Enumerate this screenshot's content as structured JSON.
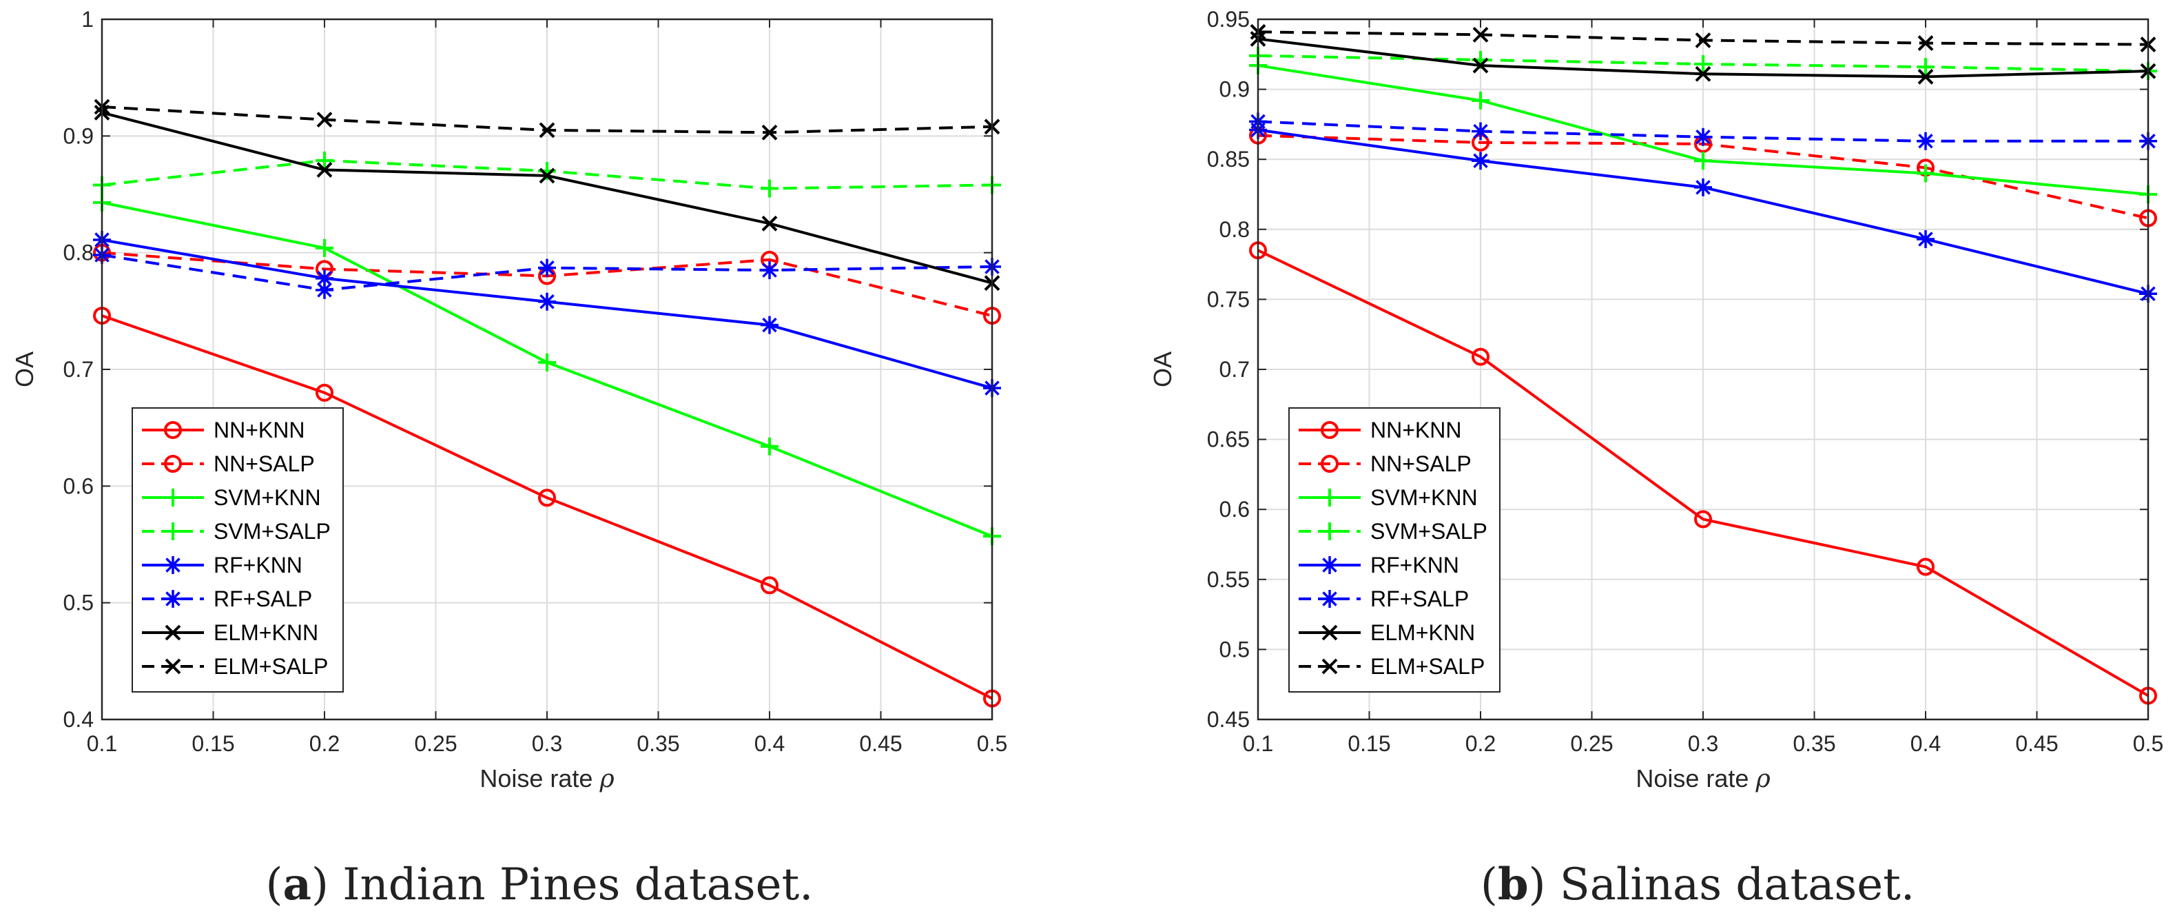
{
  "chart_data": [
    {
      "type": "line",
      "caption": {
        "letter": "a",
        "text": " Indian Pines dataset."
      },
      "xlabel": "Noise rate",
      "xlabel_symbol": "ρ",
      "ylabel": "OA",
      "xlim": [
        0.1,
        0.5
      ],
      "ylim": [
        0.4,
        1.0
      ],
      "xticks": [
        0.1,
        0.15,
        0.2,
        0.25,
        0.3,
        0.35,
        0.4,
        0.45,
        0.5
      ],
      "xtick_labels": [
        "0.1",
        "0.15",
        "0.2",
        "0.25",
        "0.3",
        "0.35",
        "0.4",
        "0.45",
        "0.5"
      ],
      "yticks": [
        0.4,
        0.5,
        0.6,
        0.7,
        0.8,
        0.9,
        1.0
      ],
      "ytick_labels": [
        "0.4",
        "0.5",
        "0.6",
        "0.7",
        "0.8",
        "0.9",
        "1"
      ],
      "grid": true,
      "legend_position": "bottom-left",
      "x": [
        0.1,
        0.2,
        0.3,
        0.4,
        0.5
      ],
      "series": [
        {
          "name": "NN+KNN",
          "color": "#ff0000",
          "dash": "solid",
          "marker": "circle",
          "values": [
            0.746,
            0.68,
            0.59,
            0.515,
            0.418
          ]
        },
        {
          "name": "NN+SALP",
          "color": "#ff0000",
          "dash": "dashed",
          "marker": "circle",
          "values": [
            0.8,
            0.786,
            0.78,
            0.794,
            0.746
          ]
        },
        {
          "name": "SVM+KNN",
          "color": "#00ff00",
          "dash": "solid",
          "marker": "plus",
          "values": [
            0.843,
            0.804,
            0.706,
            0.634,
            0.557
          ]
        },
        {
          "name": "SVM+SALP",
          "color": "#00ff00",
          "dash": "dashed",
          "marker": "plus",
          "values": [
            0.858,
            0.879,
            0.87,
            0.855,
            0.858
          ]
        },
        {
          "name": "RF+KNN",
          "color": "#0000ff",
          "dash": "solid",
          "marker": "star",
          "values": [
            0.811,
            0.778,
            0.758,
            0.738,
            0.684
          ]
        },
        {
          "name": "RF+SALP",
          "color": "#0000ff",
          "dash": "dashed",
          "marker": "star",
          "values": [
            0.798,
            0.768,
            0.787,
            0.785,
            0.788
          ]
        },
        {
          "name": "ELM+KNN",
          "color": "#000000",
          "dash": "solid",
          "marker": "x",
          "values": [
            0.92,
            0.871,
            0.866,
            0.825,
            0.774
          ]
        },
        {
          "name": "ELM+SALP",
          "color": "#000000",
          "dash": "dashed",
          "marker": "x",
          "values": [
            0.925,
            0.914,
            0.905,
            0.903,
            0.908
          ]
        }
      ]
    },
    {
      "type": "line",
      "caption": {
        "letter": "b",
        "text": " Salinas dataset."
      },
      "xlabel": "Noise rate",
      "xlabel_symbol": "ρ",
      "ylabel": "OA",
      "xlim": [
        0.1,
        0.5
      ],
      "ylim": [
        0.45,
        0.95
      ],
      "xticks": [
        0.1,
        0.15,
        0.2,
        0.25,
        0.3,
        0.35,
        0.4,
        0.45,
        0.5
      ],
      "xtick_labels": [
        "0.1",
        "0.15",
        "0.2",
        "0.25",
        "0.3",
        "0.35",
        "0.4",
        "0.45",
        "0.5"
      ],
      "yticks": [
        0.45,
        0.5,
        0.55,
        0.6,
        0.65,
        0.7,
        0.75,
        0.8,
        0.85,
        0.9,
        0.95
      ],
      "ytick_labels": [
        "0.45",
        "0.5",
        "0.55",
        "0.6",
        "0.65",
        "0.7",
        "0.75",
        "0.8",
        "0.85",
        "0.9",
        "0.95"
      ],
      "grid": true,
      "legend_position": "bottom-left",
      "x": [
        0.1,
        0.2,
        0.3,
        0.4,
        0.5
      ],
      "series": [
        {
          "name": "NN+KNN",
          "color": "#ff0000",
          "dash": "solid",
          "marker": "circle",
          "values": [
            0.785,
            0.709,
            0.593,
            0.559,
            0.467
          ]
        },
        {
          "name": "NN+SALP",
          "color": "#ff0000",
          "dash": "dashed",
          "marker": "circle",
          "values": [
            0.867,
            0.862,
            0.861,
            0.844,
            0.808
          ]
        },
        {
          "name": "SVM+KNN",
          "color": "#00ff00",
          "dash": "solid",
          "marker": "plus",
          "values": [
            0.917,
            0.892,
            0.849,
            0.84,
            0.825
          ]
        },
        {
          "name": "SVM+SALP",
          "color": "#00ff00",
          "dash": "dashed",
          "marker": "plus",
          "values": [
            0.924,
            0.921,
            0.918,
            0.916,
            0.913
          ]
        },
        {
          "name": "RF+KNN",
          "color": "#0000ff",
          "dash": "solid",
          "marker": "star",
          "values": [
            0.871,
            0.849,
            0.83,
            0.793,
            0.754
          ]
        },
        {
          "name": "RF+SALP",
          "color": "#0000ff",
          "dash": "dashed",
          "marker": "star",
          "values": [
            0.877,
            0.87,
            0.866,
            0.863,
            0.863
          ]
        },
        {
          "name": "ELM+KNN",
          "color": "#000000",
          "dash": "solid",
          "marker": "x",
          "values": [
            0.936,
            0.917,
            0.911,
            0.909,
            0.913
          ]
        },
        {
          "name": "ELM+SALP",
          "color": "#000000",
          "dash": "dashed",
          "marker": "x",
          "values": [
            0.941,
            0.939,
            0.935,
            0.933,
            0.932
          ]
        }
      ]
    }
  ]
}
